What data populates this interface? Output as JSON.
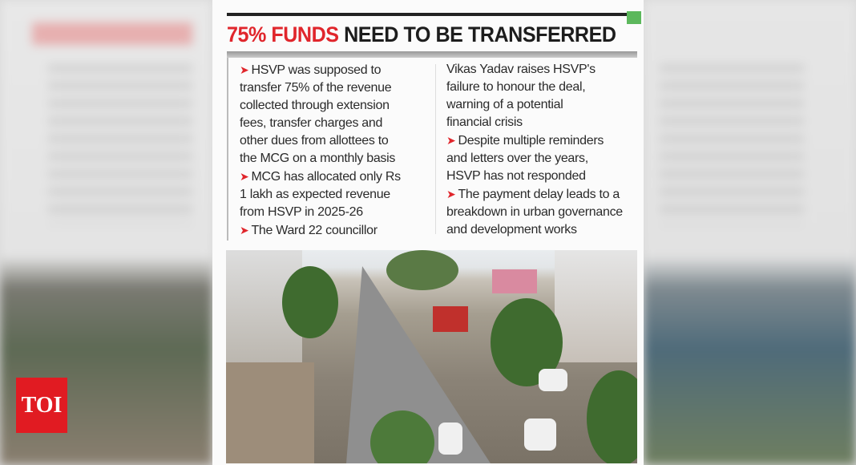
{
  "headline": {
    "red": "75% FUNDS",
    "dark": "NEED TO BE TRANSFERRED"
  },
  "colors": {
    "accent": "#e0262c",
    "green_marker": "#5cb85c",
    "logo_bg": "#e11b22"
  },
  "columns": {
    "left": [
      {
        "bullet": true,
        "text": "HSVP was supposed to"
      },
      {
        "bullet": false,
        "text": "transfer 75% of the revenue"
      },
      {
        "bullet": false,
        "text": "collected through extension"
      },
      {
        "bullet": false,
        "text": "fees, transfer charges and"
      },
      {
        "bullet": false,
        "text": "other dues from allottees to"
      },
      {
        "bullet": false,
        "text": "the MCG on a monthly basis"
      },
      {
        "bullet": true,
        "text": "MCG has allocated only Rs"
      },
      {
        "bullet": false,
        "text": "1 lakh as expected revenue"
      },
      {
        "bullet": false,
        "text": "from HSVP in 2025-26"
      },
      {
        "bullet": true,
        "text": "The Ward 22 councillor"
      }
    ],
    "right": [
      {
        "bullet": false,
        "text": "Vikas Yadav raises HSVP's"
      },
      {
        "bullet": false,
        "text": "failure to honour the deal,"
      },
      {
        "bullet": false,
        "text": "warning of a potential"
      },
      {
        "bullet": false,
        "text": "financial crisis"
      },
      {
        "bullet": true,
        "text": "Despite multiple reminders"
      },
      {
        "bullet": false,
        "text": "and letters over the years,"
      },
      {
        "bullet": false,
        "text": "HSVP has not responded"
      },
      {
        "bullet": true,
        "text": "The payment delay leads to a"
      },
      {
        "bullet": false,
        "text": "breakdown in urban governance"
      },
      {
        "bullet": false,
        "text": "and development works"
      }
    ]
  },
  "bullet_icon": "arrow-right-icon",
  "logo": {
    "text": "TOI"
  }
}
